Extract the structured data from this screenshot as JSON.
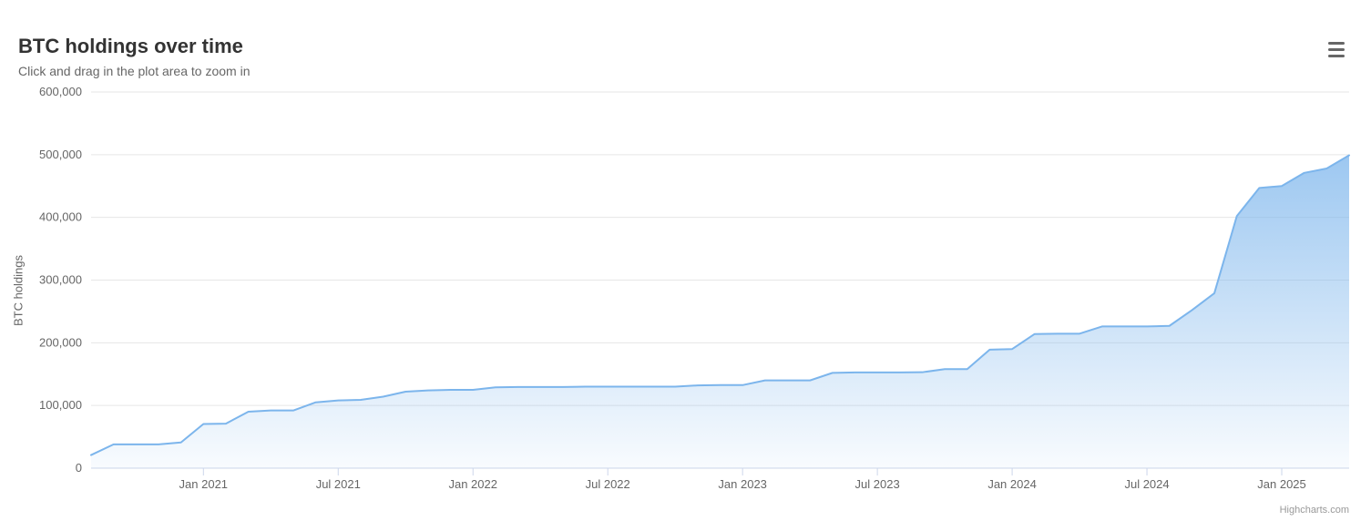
{
  "title": "BTC holdings over time",
  "subtitle": "Click and drag in the plot area to zoom in",
  "credits": "Highcharts.com",
  "yaxis_label": "BTC holdings",
  "chart": {
    "type": "area",
    "background_color": "#ffffff",
    "grid_color": "#e6e6e6",
    "axis_line_color": "#ccd6eb",
    "tick_label_color": "#666666",
    "tick_label_fontsize": 13,
    "title_fontsize": 22,
    "title_color": "#333333",
    "subtitle_fontsize": 14,
    "subtitle_color": "#666666",
    "series_line_color": "#7cb5ec",
    "series_line_width": 2,
    "series_fill_top": "rgba(124,181,236,0.75)",
    "series_fill_bottom": "rgba(124,181,236,0.05)",
    "y": {
      "min": 0,
      "max": 600000,
      "ticks": [
        0,
        100000,
        200000,
        300000,
        400000,
        500000,
        600000
      ],
      "tick_labels": [
        "0",
        "100,000",
        "200,000",
        "300,000",
        "400,000",
        "500,000",
        "600,000"
      ]
    },
    "x": {
      "min": 0,
      "max": 56,
      "ticks": [
        5,
        11,
        17,
        23,
        29,
        35,
        41,
        47,
        53
      ],
      "tick_labels": [
        "Jan 2021",
        "Jul 2021",
        "Jan 2022",
        "Jul 2022",
        "Jan 2023",
        "Jul 2023",
        "Jan 2024",
        "Jul 2024",
        "Jan 2025"
      ]
    },
    "data": {
      "x": [
        0,
        1,
        2,
        3,
        4,
        5,
        6,
        7,
        8,
        9,
        10,
        11,
        12,
        13,
        14,
        15,
        16,
        17,
        18,
        19,
        20,
        21,
        22,
        23,
        24,
        25,
        26,
        27,
        28,
        29,
        30,
        31,
        32,
        33,
        34,
        35,
        36,
        37,
        38,
        39,
        40,
        41,
        42,
        43,
        44,
        45,
        46,
        47,
        48,
        49,
        50,
        51,
        52,
        53,
        54,
        55,
        56
      ],
      "y": [
        21000,
        38000,
        38000,
        38000,
        41000,
        70500,
        71000,
        90000,
        92000,
        92000,
        105000,
        108000,
        109000,
        114000,
        122000,
        124000,
        125000,
        125000,
        129000,
        129500,
        129500,
        129500,
        130000,
        130000,
        130000,
        130000,
        130000,
        132000,
        132500,
        132500,
        140000,
        140000,
        140000,
        152000,
        152800,
        152800,
        152800,
        153000,
        158000,
        158000,
        189000,
        190000,
        214000,
        214400,
        214500,
        226000,
        226000,
        226000,
        227000,
        252000,
        279000,
        402000,
        447000,
        450000,
        471000,
        478000,
        499000
      ]
    }
  }
}
